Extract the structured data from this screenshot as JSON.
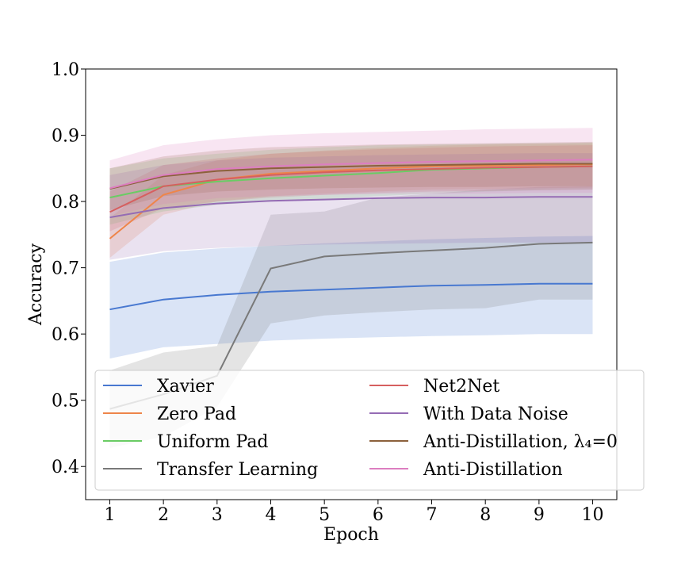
{
  "chart_data": {
    "type": "line",
    "xlabel": "Epoch",
    "ylabel": "Accuracy",
    "xlim": [
      0.55,
      10.45
    ],
    "ylim": [
      0.35,
      1.0
    ],
    "xticks": [
      1,
      2,
      3,
      4,
      5,
      6,
      7,
      8,
      9,
      10
    ],
    "yticks": [
      0.4,
      0.5,
      0.6,
      0.7,
      0.8,
      0.9,
      1.0
    ],
    "ytick_labels": [
      "0.4",
      "0.5",
      "0.6",
      "0.7",
      "0.8",
      "0.9",
      "1.0"
    ],
    "grid": false,
    "legend_position": "lower center, two columns",
    "x": [
      1,
      2,
      3,
      4,
      5,
      6,
      7,
      8,
      9,
      10
    ],
    "series": [
      {
        "name": "Xavier",
        "color": "#4878d0",
        "values": [
          0.637,
          0.652,
          0.659,
          0.664,
          0.667,
          0.67,
          0.673,
          0.674,
          0.676,
          0.676
        ],
        "lower": [
          0.563,
          0.58,
          0.585,
          0.59,
          0.593,
          0.595,
          0.597,
          0.598,
          0.6,
          0.6
        ],
        "upper": [
          0.709,
          0.723,
          0.729,
          0.733,
          0.737,
          0.74,
          0.743,
          0.745,
          0.747,
          0.748
        ]
      },
      {
        "name": "Zero Pad",
        "color": "#ee854a",
        "values": [
          0.744,
          0.81,
          0.833,
          0.842,
          0.846,
          0.85,
          0.853,
          0.854,
          0.855,
          0.856
        ],
        "lower": [
          0.715,
          0.78,
          0.8,
          0.808,
          0.812,
          0.815,
          0.818,
          0.819,
          0.82,
          0.821
        ],
        "upper": [
          0.775,
          0.84,
          0.862,
          0.872,
          0.877,
          0.881,
          0.884,
          0.886,
          0.887,
          0.888
        ]
      },
      {
        "name": "Uniform Pad",
        "color": "#6acc64",
        "values": [
          0.806,
          0.823,
          0.83,
          0.835,
          0.839,
          0.843,
          0.848,
          0.85,
          0.852,
          0.853
        ],
        "lower": [
          0.765,
          0.785,
          0.795,
          0.8,
          0.803,
          0.808,
          0.812,
          0.815,
          0.817,
          0.818
        ],
        "upper": [
          0.85,
          0.865,
          0.872,
          0.878,
          0.882,
          0.885,
          0.886,
          0.887,
          0.888,
          0.889
        ]
      },
      {
        "name": "Transfer Learning",
        "color": "#797979",
        "values": [
          0.487,
          0.509,
          0.537,
          0.699,
          0.717,
          0.722,
          0.726,
          0.73,
          0.736,
          0.738
        ],
        "lower": [
          0.428,
          0.445,
          0.49,
          0.616,
          0.628,
          0.633,
          0.637,
          0.639,
          0.652,
          0.652
        ],
        "upper": [
          0.545,
          0.572,
          0.582,
          0.78,
          0.785,
          0.806,
          0.812,
          0.818,
          0.822,
          0.823
        ]
      },
      {
        "name": "Net2Net",
        "color": "#d65f5f",
        "values": [
          0.784,
          0.823,
          0.833,
          0.84,
          0.844,
          0.847,
          0.849,
          0.851,
          0.852,
          0.853
        ],
        "lower": [
          0.755,
          0.79,
          0.8,
          0.806,
          0.81,
          0.813,
          0.815,
          0.816,
          0.817,
          0.818
        ],
        "upper": [
          0.815,
          0.855,
          0.865,
          0.872,
          0.876,
          0.879,
          0.881,
          0.883,
          0.884,
          0.885
        ]
      },
      {
        "name": "With Data Noise",
        "color": "#956cb4",
        "values": [
          0.776,
          0.79,
          0.797,
          0.801,
          0.803,
          0.805,
          0.806,
          0.806,
          0.807,
          0.807
        ],
        "lower": [
          0.712,
          0.725,
          0.73,
          0.733,
          0.735,
          0.736,
          0.737,
          0.738,
          0.738,
          0.738
        ],
        "upper": [
          0.84,
          0.855,
          0.862,
          0.866,
          0.868,
          0.87,
          0.871,
          0.872,
          0.873,
          0.873
        ]
      },
      {
        "name": "Anti-Distillation, λ₄=0",
        "color": "#8c613c",
        "values": [
          0.819,
          0.838,
          0.846,
          0.85,
          0.852,
          0.854,
          0.855,
          0.856,
          0.857,
          0.857
        ],
        "lower": [
          0.787,
          0.808,
          0.815,
          0.818,
          0.82,
          0.821,
          0.822,
          0.822,
          0.823,
          0.823
        ],
        "upper": [
          0.85,
          0.868,
          0.877,
          0.882,
          0.884,
          0.886,
          0.887,
          0.888,
          0.889,
          0.89
        ]
      },
      {
        "name": "Anti-Distillation",
        "color": "#dc7ec0",
        "values": [
          0.82,
          0.84,
          0.849,
          0.853,
          0.856,
          0.858,
          0.86,
          0.861,
          0.862,
          0.863
        ],
        "lower": [
          0.778,
          0.796,
          0.805,
          0.808,
          0.81,
          0.811,
          0.812,
          0.812,
          0.813,
          0.813
        ],
        "upper": [
          0.862,
          0.885,
          0.894,
          0.9,
          0.903,
          0.905,
          0.907,
          0.909,
          0.91,
          0.911
        ]
      }
    ]
  }
}
